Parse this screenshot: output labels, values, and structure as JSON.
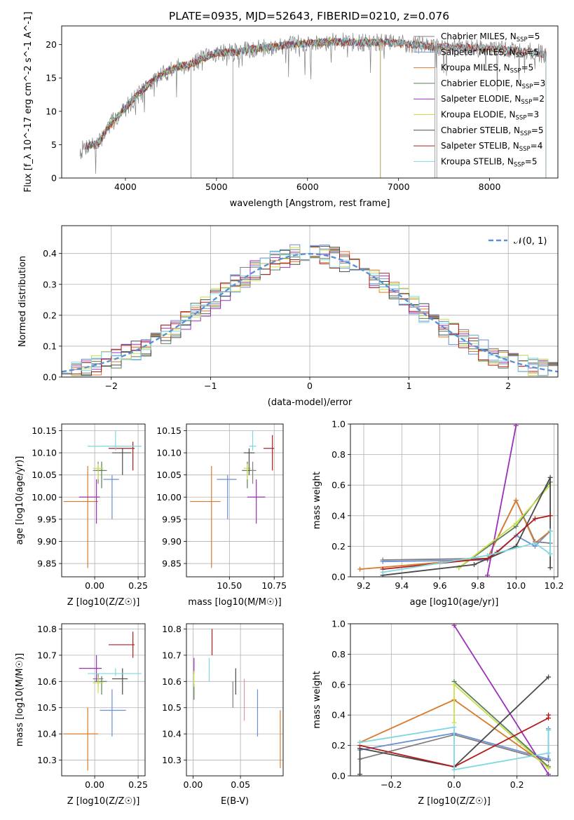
{
  "figure": {
    "title": "PLATE=0935, MJD=52643, FIBERID=0210, z=0.076"
  },
  "models": [
    {
      "label": "Chabrier MILES, N$_{SSP}$=5",
      "base": "Chabrier MILES, N",
      "sub": "SSP",
      "tail": "=5",
      "color": "#7f7f7f"
    },
    {
      "label": "Salpeter MILES, N$_{SSP}$=5",
      "base": "Salpeter MILES, N",
      "sub": "SSP",
      "tail": "=5",
      "color": "#6a8fd6"
    },
    {
      "label": "Kroupa MILES, N$_{SSP}$=5",
      "base": "Kroupa MILES, N",
      "sub": "SSP",
      "tail": "=5",
      "color": "#d97a2b"
    },
    {
      "label": "Chabrier ELODIE, N$_{SSP}$=3",
      "base": "Chabrier ELODIE, N",
      "sub": "SSP",
      "tail": "=3",
      "color": "#5a7d5a"
    },
    {
      "label": "Salpeter ELODIE, N$_{SSP}$=2",
      "base": "Salpeter ELODIE, N",
      "sub": "SSP",
      "tail": "=2",
      "color": "#9b30b8"
    },
    {
      "label": "Kroupa ELODIE, N$_{SSP}$=3",
      "base": "Kroupa ELODIE, N",
      "sub": "SSP",
      "tail": "=3",
      "color": "#c8e04a"
    },
    {
      "label": "Chabrier STELIB, N$_{SSP}$=5",
      "base": "Chabrier STELIB, N",
      "sub": "SSP",
      "tail": "=5",
      "color": "#4a4a4a"
    },
    {
      "label": "Salpeter STELIB, N$_{SSP}$=4",
      "base": "Salpeter STELIB, N",
      "sub": "SSP",
      "tail": "=4",
      "color": "#b01c1c"
    },
    {
      "label": "Kroupa STELIB, N$_{SSP}$=5",
      "base": "Kroupa STELIB, N",
      "sub": "SSP",
      "tail": "=5",
      "color": "#7fd8e0"
    }
  ],
  "chart_data": [
    {
      "id": "spectrum",
      "type": "line",
      "xlabel": "wavelength [Angstrom, rest frame]",
      "ylabel": "Flux [f_λ 10^-17 erg cm^-2 s^-1 A^-1]",
      "xlim": [
        3300,
        8750
      ],
      "ylim": [
        0,
        22.8
      ],
      "xticks": [
        4000,
        5000,
        6000,
        7000,
        8000
      ],
      "yticks": [
        0,
        5,
        10,
        15,
        20
      ],
      "grid": false,
      "legend": "upper right",
      "spectrum_anchors": {
        "x": [
          3500,
          3600,
          3700,
          3800,
          3900,
          4000,
          4100,
          4200,
          4300,
          4400,
          4500,
          4600,
          4700,
          4800,
          4900,
          5000,
          5200,
          5400,
          5600,
          5800,
          6000,
          6200,
          6400,
          6600,
          6800,
          7000,
          7200,
          7400,
          7600,
          7800,
          8000,
          8200,
          8400,
          8600
        ],
        "y": [
          4,
          5,
          5,
          7.5,
          9,
          10.5,
          12,
          13.3,
          14.5,
          15.5,
          16.2,
          16.8,
          17,
          17.6,
          18.2,
          18.8,
          18.8,
          19.4,
          19.6,
          20,
          20.2,
          20.4,
          20.4,
          20.3,
          20.3,
          20.2,
          20,
          19.6,
          19.6,
          19.6,
          19.4,
          19.2,
          19,
          18.6
        ]
      },
      "model_ranges": [
        [
          3550,
          7420
        ],
        [
          3560,
          8620
        ],
        [
          3560,
          8620
        ],
        [
          3560,
          6800
        ],
        [
          3560,
          6800
        ],
        [
          3560,
          6800
        ],
        [
          3560,
          8620
        ],
        [
          3560,
          8620
        ],
        [
          3560,
          8620
        ]
      ]
    },
    {
      "id": "residual-histogram",
      "type": "line",
      "xlabel": "(data-model)/error",
      "ylabel": "Normed distribution",
      "xlim": [
        -2.5,
        2.5
      ],
      "ylim": [
        0,
        0.49
      ],
      "xticks": [
        -2,
        -1,
        0,
        1,
        2
      ],
      "yticks": [
        0.0,
        0.1,
        0.2,
        0.3,
        0.4
      ],
      "grid": true,
      "legend": "upper right",
      "reference_curve": {
        "name": "𝒩(0, 1)",
        "mean": 0,
        "sigma": 1,
        "color": "#5b8fd6"
      },
      "bin_width": 0.1,
      "bin_start": -2.5
    },
    {
      "id": "age-vs-metallicity",
      "type": "scatter",
      "xlabel": "Z [log10(Z/Z☉)]",
      "ylabel": "age  [log10(age/yr)]",
      "xlim": [
        -0.19,
        0.29
      ],
      "ylim": [
        9.82,
        10.165
      ],
      "xticks": [
        0.0,
        0.25
      ],
      "yticks": [
        9.85,
        9.9,
        9.95,
        10.0,
        10.05,
        10.1,
        10.15
      ],
      "grid": true,
      "points": [
        {
          "model": 0,
          "x": 0.02,
          "y": 10.06,
          "ex": [
            0.03,
            0.03
          ],
          "ey": [
            0.03,
            0.02
          ]
        },
        {
          "model": 1,
          "x": 0.1,
          "y": 10.04,
          "ex": [
            0.05,
            0.04
          ],
          "ey": [
            0.09,
            0.01
          ]
        },
        {
          "model": 2,
          "x": -0.04,
          "y": 9.99,
          "ex": [
            0.14,
            0.06
          ],
          "ey": [
            0.15,
            0.08
          ]
        },
        {
          "model": 3,
          "x": 0.04,
          "y": 10.06,
          "ex": [
            0.03,
            0.03
          ],
          "ey": [
            0.04,
            0.02
          ]
        },
        {
          "model": 4,
          "x": 0.01,
          "y": 10.0,
          "ex": [
            0.1,
            0.02
          ],
          "ey": [
            0.06,
            0.04
          ]
        },
        {
          "model": 5,
          "x": 0.02,
          "y": 10.065,
          "ex": [
            0.03,
            0.03
          ],
          "ey": [
            0.025,
            0.01
          ]
        },
        {
          "model": 6,
          "x": 0.16,
          "y": 10.1,
          "ex": [
            0.06,
            0.05
          ],
          "ey": [
            0.05,
            0.01
          ]
        },
        {
          "model": 7,
          "x": 0.22,
          "y": 10.11,
          "ex": [
            0.14,
            0.01
          ],
          "ey": [
            0.05,
            0.015
          ]
        },
        {
          "model": 8,
          "x": 0.12,
          "y": 10.115,
          "ex": [
            0.16,
            0.15
          ],
          "ey": [
            0.01,
            0.035
          ]
        }
      ]
    },
    {
      "id": "age-vs-mass",
      "type": "scatter",
      "xlabel": "mass [log10(M/M☉)]",
      "ylabel": "",
      "xlim": [
        10.26,
        10.8
      ],
      "ylim": [
        9.82,
        10.165
      ],
      "xticks": [
        10.25,
        10.5,
        10.75
      ],
      "yticks": [
        9.85,
        9.9,
        9.95,
        10.0,
        10.05,
        10.1,
        10.15
      ],
      "grid": true,
      "points": [
        {
          "model": 0,
          "x": 10.63,
          "y": 10.06,
          "ex": [
            0.02,
            0.02
          ],
          "ey": [
            0.03,
            0.02
          ]
        },
        {
          "model": 1,
          "x": 10.49,
          "y": 10.04,
          "ex": [
            0.06,
            0.05
          ],
          "ey": [
            0.09,
            0.01
          ]
        },
        {
          "model": 2,
          "x": 10.4,
          "y": 9.99,
          "ex": [
            0.12,
            0.05
          ],
          "ey": [
            0.15,
            0.08
          ]
        },
        {
          "model": 3,
          "x": 10.6,
          "y": 10.06,
          "ex": [
            0.03,
            0.02
          ],
          "ey": [
            0.04,
            0.02
          ]
        },
        {
          "model": 4,
          "x": 10.65,
          "y": 10.0,
          "ex": [
            0.05,
            0.05
          ],
          "ey": [
            0.06,
            0.04
          ]
        },
        {
          "model": 5,
          "x": 10.6,
          "y": 10.065,
          "ex": [
            0.02,
            0.02
          ],
          "ey": [
            0.025,
            0.01
          ]
        },
        {
          "model": 6,
          "x": 10.61,
          "y": 10.1,
          "ex": [
            0.03,
            0.03
          ],
          "ey": [
            0.05,
            0.01
          ]
        },
        {
          "model": 7,
          "x": 10.74,
          "y": 10.11,
          "ex": [
            0.05,
            0.01
          ],
          "ey": [
            0.05,
            0.03
          ]
        },
        {
          "model": 8,
          "x": 10.63,
          "y": 10.115,
          "ex": [
            0.02,
            0.02
          ],
          "ey": [
            0.01,
            0.035
          ]
        }
      ]
    },
    {
      "id": "mass-weight-vs-age",
      "type": "line",
      "xlabel": "age  [log10(age/yr)]",
      "ylabel": "mass weight",
      "xlim": [
        9.13,
        10.22
      ],
      "ylim": [
        0,
        1
      ],
      "xticks": [
        9.2,
        9.4,
        9.6,
        9.8,
        10.0,
        10.2
      ],
      "yticks": [
        0.0,
        0.2,
        0.4,
        0.6,
        0.8,
        1.0
      ],
      "grid": true,
      "series": [
        {
          "model": 0,
          "x": [
            9.3,
            9.85,
            10.0,
            10.1,
            10.18
          ],
          "y": [
            0.11,
            0.12,
            0.5,
            0.23,
            0.22
          ]
        },
        {
          "model": 1,
          "x": [
            9.3,
            9.85,
            10.0,
            10.1,
            10.18
          ],
          "y": [
            0.1,
            0.11,
            0.27,
            0.2,
            0.3
          ]
        },
        {
          "model": 2,
          "x": [
            9.18,
            9.85,
            10.0,
            10.1,
            10.18
          ],
          "y": [
            0.05,
            0.12,
            0.5,
            0.22,
            0.3
          ]
        },
        {
          "model": 3,
          "x": [
            9.7,
            10.0,
            10.18
          ],
          "y": [
            0.06,
            0.33,
            0.62
          ]
        },
        {
          "model": 4,
          "x": [
            9.85,
            10.0
          ],
          "y": [
            0.01,
            0.99
          ]
        },
        {
          "model": 5,
          "x": [
            9.7,
            10.0,
            10.18
          ],
          "y": [
            0.06,
            0.35,
            0.6
          ]
        },
        {
          "model": 6,
          "x": [
            9.3,
            9.78,
            10.0,
            10.18,
            10.18
          ],
          "y": [
            0.01,
            0.08,
            0.2,
            0.65,
            0.06
          ]
        },
        {
          "model": 7,
          "x": [
            9.3,
            9.85,
            9.9,
            10.1,
            10.18
          ],
          "y": [
            0.05,
            0.12,
            0.16,
            0.38,
            0.4
          ]
        },
        {
          "model": 8,
          "x": [
            9.3,
            9.85,
            10.1,
            10.18,
            10.18
          ],
          "y": [
            0.03,
            0.14,
            0.22,
            0.15,
            0.3
          ]
        }
      ]
    },
    {
      "id": "mass-vs-metallicity",
      "type": "scatter",
      "xlabel": "Z [log10(Z/Z☉)]",
      "ylabel": "mass [log10(M/M☉)]",
      "xlim": [
        -0.19,
        0.29
      ],
      "ylim": [
        10.24,
        10.82
      ],
      "xticks": [
        0.0,
        0.25
      ],
      "yticks": [
        10.3,
        10.4,
        10.5,
        10.6,
        10.7,
        10.8
      ],
      "grid": true,
      "points": [
        {
          "model": 0,
          "x": 0.02,
          "y": 10.61,
          "ex": [
            0.03,
            0.03
          ],
          "ey": [
            0.03,
            0.02
          ]
        },
        {
          "model": 1,
          "x": 0.1,
          "y": 10.49,
          "ex": [
            0.07,
            0.08
          ],
          "ey": [
            0.1,
            0.08
          ]
        },
        {
          "model": 2,
          "x": -0.04,
          "y": 10.4,
          "ex": [
            0.14,
            0.06
          ],
          "ey": [
            0.14,
            0.1
          ]
        },
        {
          "model": 3,
          "x": 0.04,
          "y": 10.6,
          "ex": [
            0.04,
            0.03
          ],
          "ey": [
            0.05,
            0.02
          ]
        },
        {
          "model": 4,
          "x": 0.01,
          "y": 10.65,
          "ex": [
            0.1,
            0.03
          ],
          "ey": [
            0.05,
            0.05
          ]
        },
        {
          "model": 5,
          "x": 0.02,
          "y": 10.595,
          "ex": [
            0.03,
            0.03
          ],
          "ey": [
            0.04,
            0.02
          ]
        },
        {
          "model": 6,
          "x": 0.16,
          "y": 10.61,
          "ex": [
            0.06,
            0.03
          ],
          "ey": [
            0.06,
            0.04
          ]
        },
        {
          "model": 7,
          "x": 0.22,
          "y": 10.74,
          "ex": [
            0.14,
            0.01
          ],
          "ey": [
            0.05,
            0.05
          ]
        },
        {
          "model": 8,
          "x": 0.12,
          "y": 10.63,
          "ex": [
            0.16,
            0.15
          ],
          "ey": [
            0.01,
            0.02
          ]
        }
      ]
    },
    {
      "id": "mass-vs-extinction",
      "type": "scatter",
      "xlabel": "E(B-V)",
      "ylabel": "",
      "xlim": [
        -0.007,
        0.095
      ],
      "ylim": [
        10.24,
        10.82
      ],
      "xticks": [
        0.0,
        0.05
      ],
      "yticks": [
        10.3,
        10.4,
        10.5,
        10.6,
        10.7,
        10.8
      ],
      "grid": true,
      "points": [
        {
          "model": 0,
          "x": 0.042,
          "y": 10.56,
          "ex": [
            0,
            0
          ],
          "ey": [
            0.06,
            0.04
          ]
        },
        {
          "model": 1,
          "x": 0.068,
          "y": 10.48,
          "ex": [
            0,
            0
          ],
          "ey": [
            0.09,
            0.09
          ]
        },
        {
          "model": 2,
          "x": 0.092,
          "y": 10.38,
          "ex": [
            0,
            0
          ],
          "ey": [
            0.11,
            0.11
          ]
        },
        {
          "model": 3,
          "x": 0.001,
          "y": 10.57,
          "ex": [
            0,
            0
          ],
          "ey": [
            0.04,
            0.02
          ]
        },
        {
          "model": 4,
          "x": 0.001,
          "y": 10.66,
          "ex": [
            0,
            0
          ],
          "ey": [
            0.03,
            0.03
          ]
        },
        {
          "model": 5,
          "x": 0.001,
          "y": 10.61,
          "ex": [
            0,
            0
          ],
          "ey": [
            0.03,
            0.03
          ]
        },
        {
          "model": 6,
          "x": 0.045,
          "y": 10.6,
          "ex": [
            0,
            0
          ],
          "ey": [
            0.05,
            0.05
          ]
        },
        {
          "model": 7,
          "x": 0.02,
          "y": 10.75,
          "ex": [
            0,
            0
          ],
          "ey": [
            0.05,
            0.05
          ]
        },
        {
          "model": 8,
          "x": 0.017,
          "y": 10.64,
          "ex": [
            0,
            0
          ],
          "ey": [
            0.04,
            0.05
          ]
        },
        {
          "model": 1,
          "x": 0.054,
          "y": 10.53,
          "ex": [
            0,
            0
          ],
          "ey": [
            0.08,
            0.08
          ],
          "override_color": "#e08fb8"
        }
      ]
    },
    {
      "id": "mass-weight-vs-metallicity",
      "type": "line",
      "xlabel": "Z [log10(Z/Z☉)]",
      "ylabel": "mass weight",
      "xlim": [
        -0.33,
        0.33
      ],
      "ylim": [
        0,
        1
      ],
      "xticks": [
        -0.2,
        0.0,
        0.2
      ],
      "yticks": [
        0.0,
        0.2,
        0.4,
        0.6,
        0.8,
        1.0
      ],
      "grid": true,
      "series": [
        {
          "model": 0,
          "x": [
            -0.3,
            0.0,
            0.3,
            0.3
          ],
          "y": [
            0.11,
            0.27,
            0.1,
            0.3
          ]
        },
        {
          "model": 1,
          "x": [
            -0.3,
            0.0,
            0.3,
            0.3
          ],
          "y": [
            0.17,
            0.28,
            0.11,
            0.31
          ]
        },
        {
          "model": 2,
          "x": [
            -0.3,
            0.0,
            0.3
          ],
          "y": [
            0.22,
            0.5,
            0.06
          ]
        },
        {
          "model": 3,
          "x": [
            0.0,
            0.3
          ],
          "y": [
            0.62,
            0.06
          ]
        },
        {
          "model": 4,
          "x": [
            0.0,
            0.3
          ],
          "y": [
            0.99,
            0.01
          ]
        },
        {
          "model": 5,
          "x": [
            0.0,
            0.0,
            0.3
          ],
          "y": [
            0.35,
            0.6,
            0.05
          ]
        },
        {
          "model": 6,
          "x": [
            -0.3,
            -0.3,
            0.0,
            0.3
          ],
          "y": [
            0.01,
            0.18,
            0.06,
            0.65
          ]
        },
        {
          "model": 7,
          "x": [
            -0.3,
            0.0,
            0.3,
            0.3
          ],
          "y": [
            0.2,
            0.06,
            0.38,
            0.4
          ]
        },
        {
          "model": 8,
          "x": [
            -0.3,
            0.0,
            0.0,
            0.3,
            0.3
          ],
          "y": [
            0.22,
            0.32,
            0.04,
            0.15,
            0.3
          ]
        }
      ]
    }
  ]
}
